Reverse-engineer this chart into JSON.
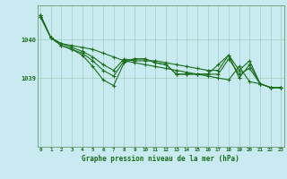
{
  "xlabel": "Graphe pression niveau de la mer (hPa)",
  "background_color": "#c8eaf0",
  "plot_bg_color": "#c8eaf0",
  "grid_color": "#9ecfbb",
  "line_color": "#1a6e1a",
  "x_ticks": [
    0,
    1,
    2,
    3,
    4,
    5,
    6,
    7,
    8,
    9,
    10,
    11,
    12,
    13,
    14,
    15,
    16,
    17,
    18,
    19,
    20,
    21,
    22,
    23
  ],
  "y_ticks": [
    1039,
    1040
  ],
  "ylim": [
    1037.2,
    1040.9
  ],
  "xlim": [
    -0.3,
    23.3
  ],
  "series": [
    [
      1040.65,
      1040.05,
      1039.9,
      1039.85,
      1039.8,
      1039.75,
      1039.65,
      1039.55,
      1039.45,
      1039.4,
      1039.35,
      1039.3,
      1039.25,
      1039.2,
      1039.15,
      1039.1,
      1039.05,
      1039.0,
      1038.95,
      1039.3,
      1038.9,
      1038.85,
      1038.75,
      1038.75
    ],
    [
      1040.65,
      1040.05,
      1039.9,
      1039.8,
      1039.7,
      1039.55,
      1039.35,
      1039.2,
      1039.5,
      1039.45,
      1039.45,
      1039.45,
      1039.4,
      1039.35,
      1039.3,
      1039.25,
      1039.2,
      1039.2,
      1039.6,
      1039.0,
      1039.35,
      1038.85,
      1038.75,
      1038.75
    ],
    [
      1040.6,
      1040.05,
      1039.85,
      1039.75,
      1039.65,
      1039.45,
      1039.2,
      1039.05,
      1039.45,
      1039.5,
      1039.5,
      1039.4,
      1039.35,
      1039.1,
      1039.1,
      1039.1,
      1039.1,
      1039.35,
      1039.6,
      1039.2,
      1039.45,
      1038.85,
      1038.75,
      1038.75
    ],
    [
      1040.6,
      1040.05,
      1039.85,
      1039.75,
      1039.6,
      1039.3,
      1038.95,
      1038.8,
      1039.4,
      1039.5,
      1039.5,
      1039.4,
      1039.35,
      1039.1,
      1039.1,
      1039.1,
      1039.1,
      1039.1,
      1039.5,
      1039.1,
      1039.25,
      1038.85,
      1038.75,
      1038.75
    ]
  ]
}
